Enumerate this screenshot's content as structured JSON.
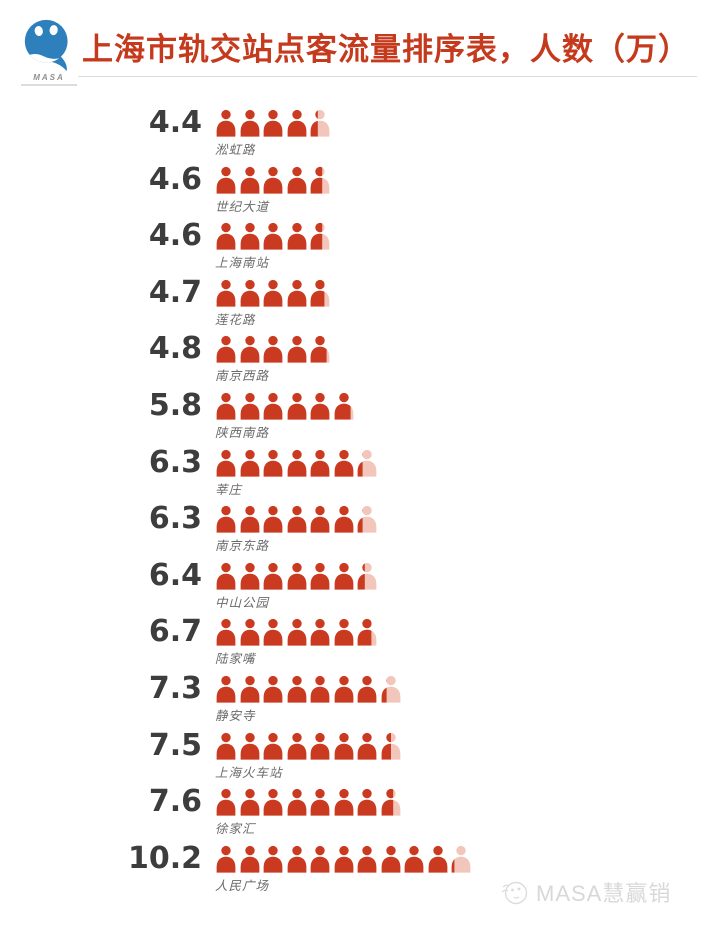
{
  "header": {
    "title": "上海市轨交站点客流量排序表，人数（万）",
    "logo_brand": "MASA",
    "title_color": "#c53a1d",
    "logo_color": "#2e80bd"
  },
  "chart_data": {
    "type": "bar",
    "style": "pictogram-people",
    "title": "上海市轨交站点客流量排序表，人数（万）",
    "unit_per_icon": 1,
    "unit_label": "万",
    "orientation": "horizontal",
    "sort": "ascending",
    "categories": [
      "淞虹路",
      "世纪大道",
      "上海南站",
      "莲花路",
      "南京西路",
      "陕西南路",
      "莘庄",
      "南京东路",
      "中山公园",
      "陆家嘴",
      "静安寺",
      "上海火车站",
      "徐家汇",
      "人民广场"
    ],
    "values": [
      4.4,
      4.6,
      4.6,
      4.7,
      4.8,
      5.8,
      6.3,
      6.3,
      6.4,
      6.7,
      7.3,
      7.5,
      7.6,
      10.2
    ],
    "value_labels": [
      "4.4",
      "4.6",
      "4.6",
      "4.7",
      "4.8",
      "5.8",
      "6.3",
      "6.3",
      "6.4",
      "6.7",
      "7.3",
      "7.5",
      "7.6",
      "10.2"
    ],
    "colors": {
      "icon_full": "#c93a20",
      "icon_partial_rest": "#f2c6bb",
      "value_text": "#3d3d3d",
      "label_text": "#6a6a6a"
    }
  },
  "watermark": {
    "text": "MASA慧赢销"
  }
}
